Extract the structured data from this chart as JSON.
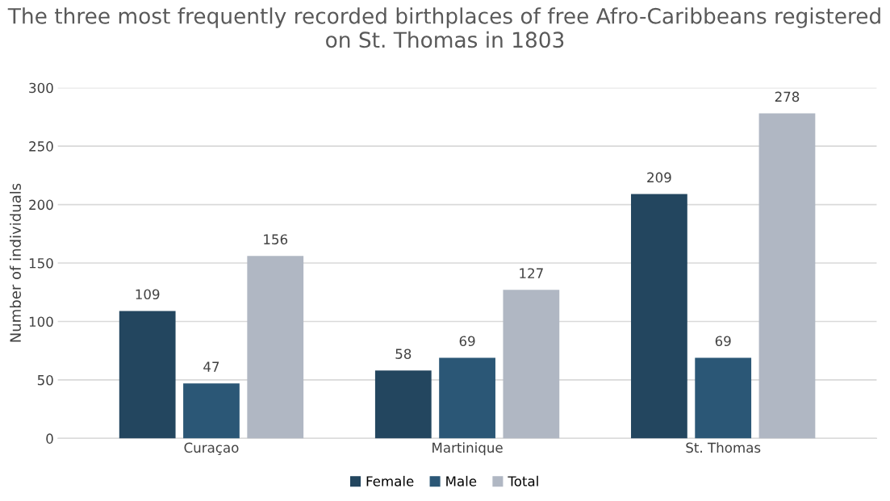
{
  "chart_data": {
    "type": "bar",
    "title": "The three most frequently recorded birthplaces of free Afro-Caribbeans registered on St. Thomas in 1803",
    "ylabel": "Number of individuals",
    "categories": [
      "Curaçao",
      "Martinique",
      "St. Thomas"
    ],
    "series": [
      {
        "name": "Female",
        "color": "#23465f",
        "values": [
          109,
          58,
          209
        ]
      },
      {
        "name": "Male",
        "color": "#2b5776",
        "values": [
          47,
          69,
          69
        ]
      },
      {
        "name": "Total",
        "color": "#b0b7c3",
        "values": [
          156,
          127,
          278
        ]
      }
    ],
    "ylim": [
      0,
      300
    ],
    "yticks": [
      0,
      50,
      100,
      150,
      200,
      250,
      300
    ],
    "grid": "y",
    "legend": "bottom",
    "data_labels": true
  }
}
